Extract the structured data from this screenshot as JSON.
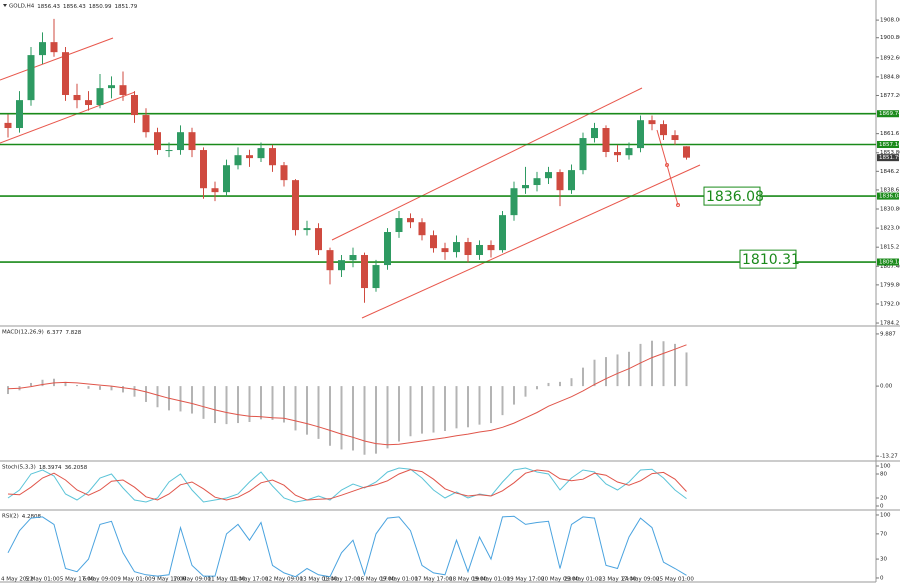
{
  "chart_data": [
    {
      "type": "candlestick",
      "title": "GOLD,H4",
      "categories": [
        "4 May 2022",
        null,
        null,
        "5 May 01:00",
        null,
        null,
        "5 May 17:00",
        null,
        "6 May 09:00",
        null,
        null,
        "9 May 01:00",
        null,
        null,
        "9 May 17:00",
        null,
        "10 May 09:00",
        null,
        null,
        "11 May 01:00",
        null,
        "11 May 17:00",
        null,
        null,
        "12 May 09:00",
        null,
        null,
        "13 May 01:00",
        null,
        "13 May 17:00",
        null,
        null,
        "16 May 09:00",
        null,
        "17 May 01:00",
        null,
        null,
        "17 May 17:00",
        null,
        null,
        "18 May 09:00",
        null,
        "19 May 01:00",
        null,
        null,
        "19 May 17:00",
        null,
        null,
        "20 May 09:00",
        null,
        "23 May 01:00",
        null,
        null,
        "23 May 17:00",
        null,
        "24 May 09:00",
        null,
        null,
        "25 May 01:00",
        null
      ],
      "open": [
        1866.0,
        1863.9,
        1875.3,
        1893.7,
        1899.0,
        1894.9,
        1877.4,
        1875.3,
        1873.3,
        1880.2,
        1881.4,
        1877.4,
        1869.2,
        1862.2,
        1854.9,
        1854.9,
        1862.2,
        1854.9,
        1839.3,
        1837.7,
        1848.7,
        1852.8,
        1851.6,
        1855.7,
        1848.7,
        1842.6,
        1822.2,
        1823.0,
        1814.0,
        1805.8,
        1809.9,
        1812.0,
        1798.5,
        1807.9,
        1821.4,
        1827.1,
        1825.4,
        1820.1,
        1814.8,
        1813.2,
        1817.3,
        1812.0,
        1816.1,
        1814.0,
        1828.3,
        1839.3,
        1840.6,
        1843.4,
        1845.9,
        1838.5,
        1846.7,
        1859.8,
        1863.9,
        1854.1,
        1852.8,
        1855.7,
        1867.1,
        1865.5,
        1861.0,
        1856.43
      ],
      "high": [
        1869.5,
        1879,
        1897,
        1903,
        1908.5,
        1897,
        1882,
        1879,
        1886,
        1885,
        1887,
        1879,
        1872,
        1864,
        1858,
        1865,
        1864,
        1856,
        1842,
        1851,
        1856,
        1855,
        1858,
        1857,
        1850,
        1843,
        1826,
        1825,
        1815,
        1812,
        1815,
        1813,
        1810,
        1823,
        1830,
        1829,
        1827,
        1822,
        1817,
        1820,
        1819,
        1818,
        1818,
        1830,
        1842,
        1848,
        1846,
        1848,
        1847,
        1849,
        1862,
        1866,
        1865,
        1857,
        1858,
        1869,
        1869,
        1867,
        1863,
        1856.43
      ],
      "low": [
        1860,
        1862,
        1873,
        1890,
        1893,
        1875,
        1872,
        1871,
        1872,
        1876,
        1875,
        1866,
        1860,
        1853,
        1852,
        1853,
        1852,
        1835,
        1834,
        1836,
        1847,
        1848,
        1850,
        1846,
        1840,
        1820,
        1820,
        1812,
        1800,
        1803,
        1807,
        1792.5,
        1797,
        1806,
        1819,
        1823,
        1818,
        1813,
        1810,
        1811,
        1809,
        1810,
        1811,
        1813,
        1826,
        1837,
        1838,
        1841,
        1832,
        1837,
        1845,
        1858,
        1852,
        1850,
        1851,
        1854,
        1863,
        1859,
        1857,
        1850.99
      ],
      "close": [
        1863.9,
        1875.3,
        1893.7,
        1899.0,
        1894.9,
        1877.4,
        1875.3,
        1873.3,
        1880.2,
        1881.4,
        1877.4,
        1869.2,
        1862.2,
        1854.9,
        1854.9,
        1862.2,
        1854.9,
        1839.3,
        1837.7,
        1848.7,
        1852.8,
        1851.6,
        1855.7,
        1848.7,
        1842.6,
        1822.2,
        1823.0,
        1814.0,
        1805.8,
        1809.9,
        1812.0,
        1798.5,
        1807.9,
        1821.4,
        1827.1,
        1825.4,
        1820.1,
        1814.8,
        1813.2,
        1817.3,
        1812.0,
        1816.1,
        1814.0,
        1828.3,
        1839.3,
        1840.6,
        1843.4,
        1845.9,
        1838.5,
        1846.7,
        1859.8,
        1863.9,
        1854.1,
        1852.8,
        1855.7,
        1867.1,
        1865.5,
        1861.0,
        1859.0,
        1851.79
      ],
      "up_color": "#2e9a62",
      "down_color": "#cf4a3f",
      "ylim": [
        1783.4,
        1915.4
      ],
      "yticks": [
        {
          "value": 1908,
          "label": "1908.00"
        },
        {
          "value": 1900.8,
          "label": "1900.80"
        },
        {
          "value": 1892.6,
          "label": "1892.60"
        },
        {
          "value": 1884.8,
          "label": "1884.80"
        },
        {
          "value": 1877.2,
          "label": "1877.20"
        },
        1861.6,
        {
          "value": 1853.8,
          "label": "1853.80"
        },
        1846.2,
        1838.6,
        {
          "value": 1830.8,
          "label": "1830.80"
        },
        {
          "value": 1823,
          "label": "1823.00"
        },
        1815.2,
        {
          "value": 1807.4,
          "label": "1807.40"
        },
        {
          "value": 1799.8,
          "label": "1799.80"
        },
        {
          "value": 1792,
          "label": "1792.00"
        },
        1784.2
      ],
      "levels": [
        1869.74,
        1857.16,
        1836.08,
        1809.14
      ],
      "level_color": "#1a8a1a",
      "annotations": [
        1836.08,
        1810.31
      ]
    },
    {
      "type": "macd",
      "title": "MACD(12,26,9)",
      "histogram": [
        -1.5,
        -0.8,
        0.6,
        1.2,
        1.4,
        0.8,
        0.2,
        -0.5,
        -0.7,
        -0.8,
        -1.2,
        -2.0,
        -3.0,
        -4.0,
        -4.6,
        -4.8,
        -5.2,
        -6.2,
        -7.0,
        -7.2,
        -7.0,
        -6.8,
        -6.3,
        -6.4,
        -6.9,
        -8.4,
        -9.2,
        -10.0,
        -11.3,
        -12.0,
        -12.2,
        -13.0,
        -12.8,
        -11.8,
        -10.5,
        -9.5,
        -9.0,
        -8.8,
        -8.5,
        -8.0,
        -7.8,
        -7.3,
        -7.0,
        -5.5,
        -3.5,
        -2.0,
        -0.6,
        0.6,
        0.8,
        1.5,
        3.5,
        5.0,
        5.5,
        6.0,
        6.5,
        8.0,
        8.6,
        8.5,
        8.0,
        6.377
      ],
      "signal": [
        -0.5,
        -0.4,
        -0.1,
        0.3,
        0.6,
        0.7,
        0.6,
        0.4,
        0.2,
        0.0,
        -0.3,
        -0.6,
        -1.1,
        -1.7,
        -2.3,
        -2.8,
        -3.3,
        -3.9,
        -4.5,
        -5.0,
        -5.4,
        -5.7,
        -5.8,
        -6.0,
        -6.1,
        -6.6,
        -7.1,
        -7.7,
        -8.4,
        -9.1,
        -9.7,
        -10.4,
        -10.9,
        -11.1,
        -11.0,
        -10.7,
        -10.4,
        -10.1,
        -9.8,
        -9.4,
        -9.1,
        -8.7,
        -8.4,
        -7.8,
        -7.0,
        -6.0,
        -5.0,
        -3.8,
        -2.9,
        -2.0,
        -0.9,
        0.3,
        1.4,
        2.4,
        3.3,
        4.4,
        5.4,
        6.2,
        7.0,
        7.828
      ],
      "histogram_color": "#b4b4b4",
      "signal_color": "#e0554a",
      "ylim": [
        -14.0,
        11.2
      ],
      "yticks": [
        9.887,
        {
          "value": 0,
          "label": "0.00"
        },
        -13.27
      ]
    },
    {
      "type": "stochastic",
      "title": "Stoch(5,3,3)",
      "main": [
        20,
        40,
        80,
        90,
        75,
        30,
        15,
        35,
        70,
        80,
        45,
        15,
        10,
        20,
        60,
        80,
        40,
        10,
        15,
        20,
        30,
        60,
        85,
        50,
        20,
        10,
        15,
        25,
        15,
        40,
        55,
        45,
        60,
        85,
        95,
        92,
        70,
        40,
        20,
        35,
        20,
        30,
        25,
        60,
        90,
        95,
        85,
        80,
        40,
        70,
        90,
        85,
        55,
        40,
        60,
        90,
        92,
        70,
        40,
        18.3974
      ],
      "signal": [
        30,
        28,
        47,
        70,
        82,
        65,
        40,
        27,
        40,
        62,
        65,
        47,
        23,
        15,
        30,
        53,
        60,
        43,
        22,
        15,
        22,
        37,
        58,
        65,
        52,
        27,
        15,
        17,
        18,
        27,
        37,
        47,
        53,
        63,
        80,
        91,
        86,
        67,
        43,
        32,
        25,
        28,
        25,
        38,
        58,
        82,
        90,
        87,
        68,
        63,
        67,
        82,
        77,
        60,
        52,
        63,
        81,
        84,
        67,
        36.2058
      ],
      "main_color": "#5cc4d8",
      "signal_color": "#e0554a",
      "ylim": [
        -7.5,
        110
      ],
      "yticks": [
        100,
        80,
        20,
        0
      ]
    },
    {
      "type": "rsi",
      "title": "RSI(2)",
      "values": [
        40,
        75,
        95,
        97,
        85,
        15,
        10,
        30,
        85,
        90,
        40,
        10,
        5,
        3,
        5,
        80,
        20,
        3,
        3,
        70,
        85,
        60,
        88,
        20,
        8,
        2,
        15,
        5,
        2,
        40,
        60,
        5,
        70,
        95,
        97,
        75,
        20,
        8,
        5,
        60,
        10,
        65,
        30,
        97,
        98,
        85,
        88,
        90,
        15,
        85,
        97,
        95,
        20,
        15,
        65,
        95,
        80,
        25,
        15,
        4.2808
      ],
      "color": "#4aa3df",
      "ylim": [
        -4.8,
        106.3
      ],
      "yticks": [
        100,
        70,
        30,
        0
      ]
    }
  ]
}
